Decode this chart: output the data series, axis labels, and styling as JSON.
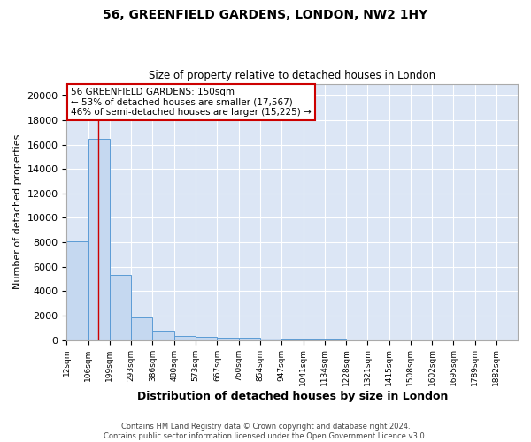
{
  "title1": "56, GREENFIELD GARDENS, LONDON, NW2 1HY",
  "title2": "Size of property relative to detached houses in London",
  "xlabel": "Distribution of detached houses by size in London",
  "ylabel": "Number of detached properties",
  "bar_labels": [
    "12sqm",
    "106sqm",
    "199sqm",
    "293sqm",
    "386sqm",
    "480sqm",
    "573sqm",
    "667sqm",
    "760sqm",
    "854sqm",
    "947sqm",
    "1041sqm",
    "1134sqm",
    "1228sqm",
    "1321sqm",
    "1415sqm",
    "1508sqm",
    "1602sqm",
    "1695sqm",
    "1789sqm",
    "1882sqm"
  ],
  "bar_edges": [
    12,
    106,
    199,
    293,
    386,
    480,
    573,
    667,
    760,
    854,
    947,
    1041,
    1134,
    1228,
    1321,
    1415,
    1508,
    1602,
    1695,
    1789,
    1882
  ],
  "bar_heights": [
    8100,
    16500,
    5300,
    1850,
    700,
    300,
    230,
    200,
    170,
    120,
    50,
    20,
    10,
    5,
    3,
    2,
    1,
    1,
    0,
    0
  ],
  "bar_color": "#c5d8f0",
  "bar_edge_color": "#5b9bd5",
  "bg_color": "#dce6f5",
  "grid_color": "#ffffff",
  "red_line_x": 150,
  "annotation_line1": "56 GREENFIELD GARDENS: 150sqm",
  "annotation_line2": "← 53% of detached houses are smaller (17,567)",
  "annotation_line3": "46% of semi-detached houses are larger (15,225) →",
  "annotation_box_color": "#ffffff",
  "annotation_border_color": "#cc0000",
  "ylim": [
    0,
    21000
  ],
  "yticks": [
    0,
    2000,
    4000,
    6000,
    8000,
    10000,
    12000,
    14000,
    16000,
    18000,
    20000
  ],
  "footer1": "Contains HM Land Registry data © Crown copyright and database right 2024.",
  "footer2": "Contains public sector information licensed under the Open Government Licence v3.0."
}
